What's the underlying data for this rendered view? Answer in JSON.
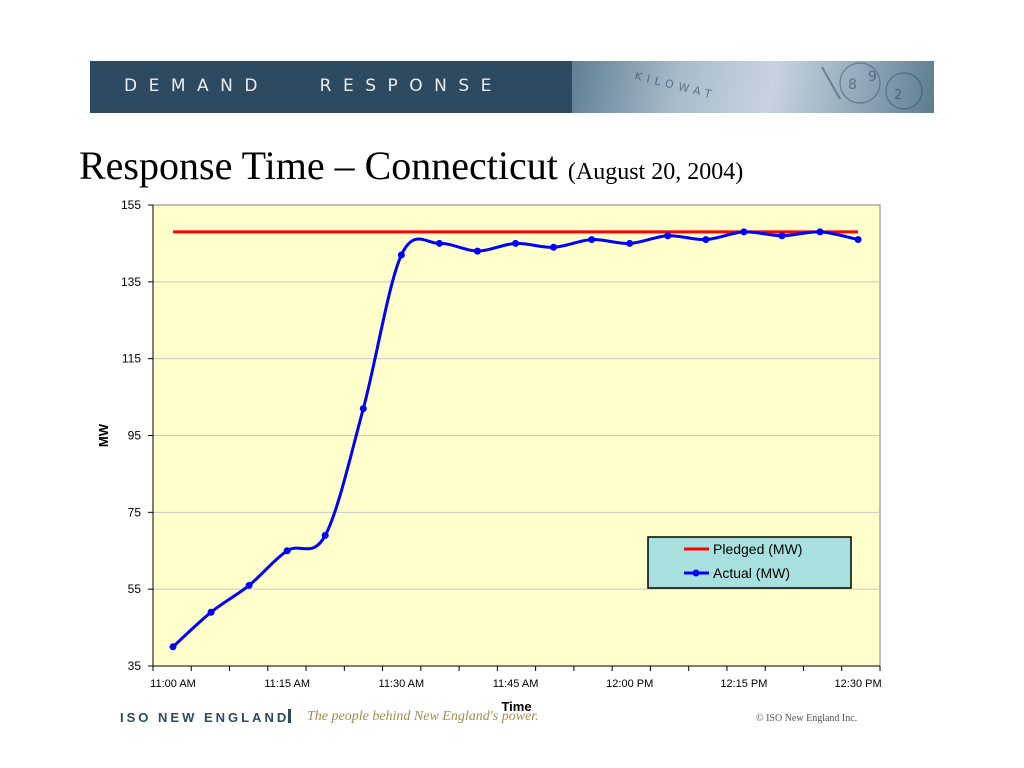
{
  "banner": {
    "text": "DEMAND   RESPONSE",
    "image_text": "KILOWAT"
  },
  "title": {
    "main": "Response Time – Connecticut",
    "sub": "(August 20, 2004)"
  },
  "colors": {
    "banner": "#2e4a61",
    "plot_bg": "#ffffcc",
    "pledged": "#ff0000",
    "actual": "#0000ff",
    "legend_bg": "#a8e0e0",
    "footer_tag": "#a58a4e"
  },
  "chart_data": {
    "type": "line",
    "xlabel": "Time",
    "ylabel": "MW",
    "ylim": [
      35,
      155
    ],
    "yticks": [
      35,
      55,
      75,
      95,
      115,
      135,
      155
    ],
    "x": [
      "11:00 AM",
      "11:05 AM",
      "11:10 AM",
      "11:15 AM",
      "11:20 AM",
      "11:25 AM",
      "11:30 AM",
      "11:35 AM",
      "11:40 AM",
      "11:45 AM",
      "11:50 AM",
      "11:55 AM",
      "12:00 PM",
      "12:05 PM",
      "12:10 PM",
      "12:15 PM",
      "12:20 PM",
      "12:25 PM",
      "12:30 PM"
    ],
    "xtick_labels": [
      "11:00 AM",
      "11:15 AM",
      "11:30 AM",
      "11:45 AM",
      "12:00 PM",
      "12:15 PM",
      "12:30 PM"
    ],
    "series": [
      {
        "name": "Pledged (MW)",
        "color": "#ff0000",
        "values": [
          148,
          148,
          148,
          148,
          148,
          148,
          148,
          148,
          148,
          148,
          148,
          148,
          148,
          148,
          148,
          148,
          148,
          148,
          148
        ]
      },
      {
        "name": "Actual (MW)",
        "color": "#0000ff",
        "values": [
          40,
          49,
          56,
          65,
          69,
          102,
          142,
          145,
          143,
          145,
          144,
          146,
          145,
          147,
          146,
          148,
          147,
          148,
          146
        ]
      }
    ],
    "grid": true,
    "legend": "bottom-right"
  },
  "footer": {
    "org": "ISO NEW ENGLAND",
    "tagline": "The people behind New England's power.",
    "copyright": "© ISO New England Inc."
  }
}
